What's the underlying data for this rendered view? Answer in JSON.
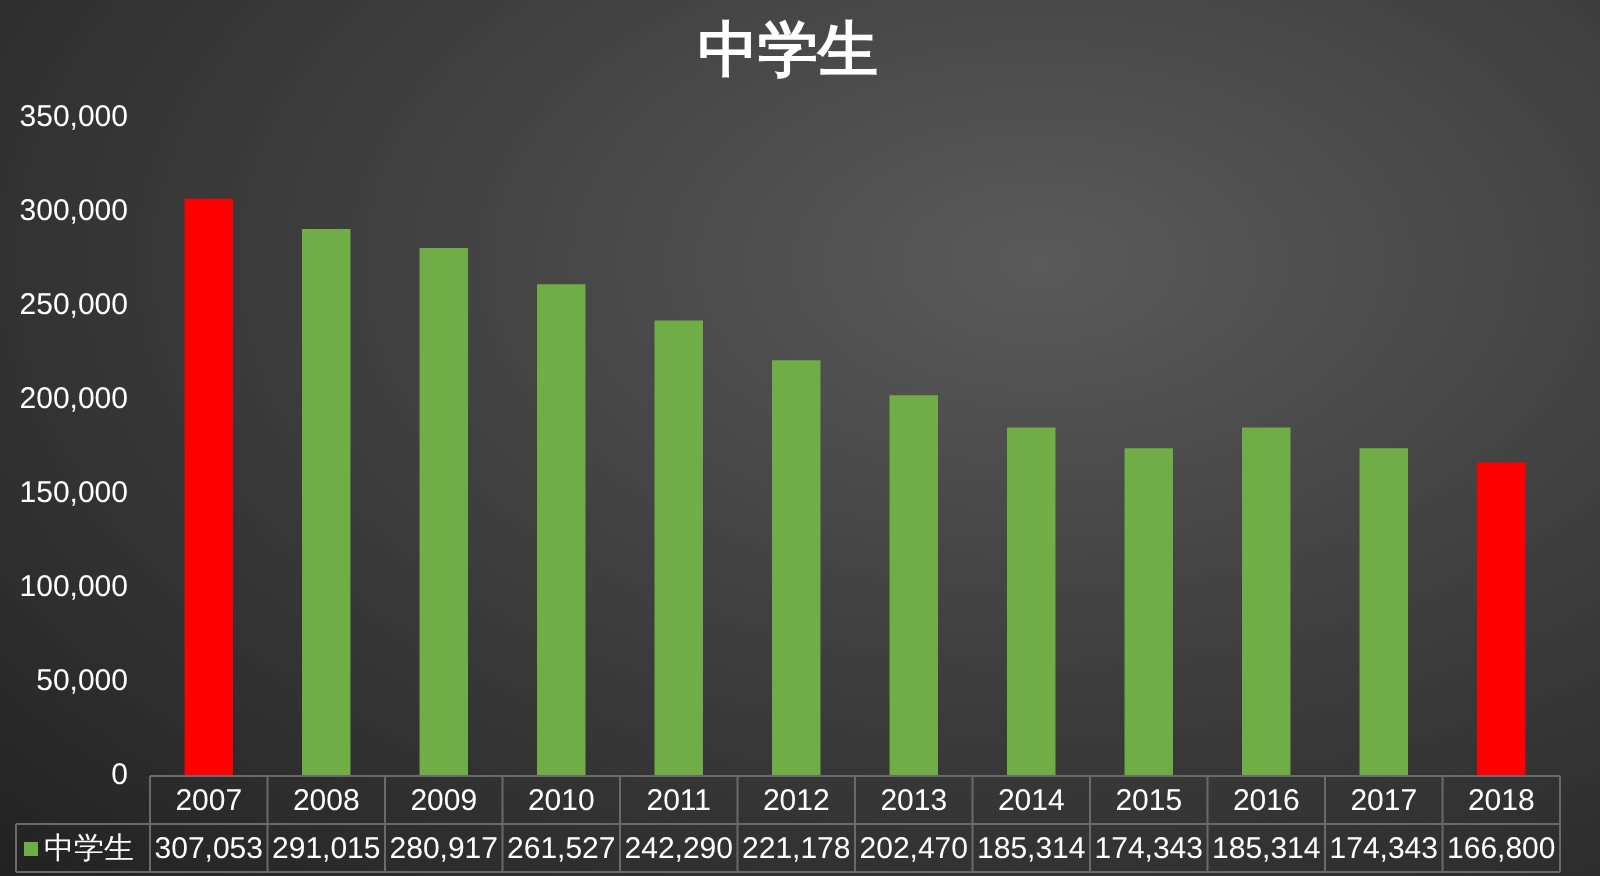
{
  "chart_data": {
    "type": "bar",
    "title": "中学生",
    "categories": [
      "2007",
      "2008",
      "2009",
      "2010",
      "2011",
      "2012",
      "2013",
      "2014",
      "2015",
      "2016",
      "2017",
      "2018"
    ],
    "series": [
      {
        "name": "中学生",
        "color": "#70ad47",
        "colors": [
          "#ff0000",
          "#70ad47",
          "#70ad47",
          "#70ad47",
          "#70ad47",
          "#70ad47",
          "#70ad47",
          "#70ad47",
          "#70ad47",
          "#70ad47",
          "#70ad47",
          "#ff0000"
        ],
        "values": [
          307053,
          291015,
          280917,
          261527,
          242290,
          221178,
          202470,
          185314,
          174343,
          185314,
          174343,
          166800
        ],
        "value_labels": [
          "307,053",
          "291,015",
          "280,917",
          "261,527",
          "242,290",
          "221,178",
          "202,470",
          "185,314",
          "174,343",
          "185,314",
          "174,343",
          "166,800"
        ]
      }
    ],
    "ylim": [
      0,
      350000
    ],
    "yticks": [
      0,
      {
        "value": 50000,
        "label": "50,000"
      },
      {
        "value": 100000,
        "label": "100,000"
      },
      {
        "value": 150000,
        "label": "150,000"
      },
      {
        "value": 200000,
        "label": "200,000"
      },
      {
        "value": 250000,
        "label": "250,000"
      },
      {
        "value": 300000,
        "label": "300,000"
      },
      {
        "value": 350000,
        "label": "350,000"
      }
    ],
    "grid": false,
    "legend": "bottom left"
  }
}
